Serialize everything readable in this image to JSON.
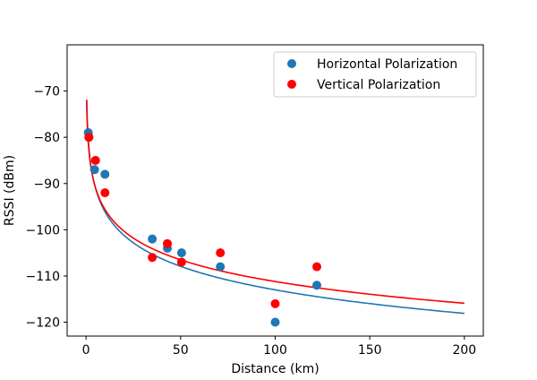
{
  "chart_data": {
    "type": "scatter",
    "xlabel": "Distance (km)",
    "ylabel": "RSSI (dBm)",
    "xlim": [
      -10,
      210
    ],
    "ylim": [
      -123,
      -60
    ],
    "xticks": [
      0,
      50,
      100,
      150,
      200
    ],
    "xtick_labels": [
      "0",
      "50",
      "100",
      "150",
      "200"
    ],
    "yticks": [
      -70,
      -80,
      -90,
      -100,
      -110,
      -120
    ],
    "ytick_labels": [
      "−70",
      "−80",
      "−90",
      "−100",
      "−110",
      "−120"
    ],
    "grid": false,
    "legend_position": "top-right",
    "series": [
      {
        "name": "Horizontal Polarization",
        "kind": "scatter",
        "color": "#1f77b4",
        "x": [
          1.2,
          1.5,
          4.5,
          10,
          35,
          43,
          50.5,
          71,
          100,
          122
        ],
        "y": [
          -79,
          -80,
          -87,
          -88,
          -102,
          -104,
          -105,
          -108,
          -120,
          -112
        ]
      },
      {
        "name": "Vertical Polarization",
        "kind": "scatter",
        "color": "#ff0000",
        "x": [
          1.5,
          5,
          10,
          35,
          43,
          50.5,
          71,
          100,
          122
        ],
        "y": [
          -80,
          -85,
          -92,
          -106,
          -103,
          -107,
          -105,
          -116,
          -108
        ]
      }
    ],
    "fit_lines": [
      {
        "color": "#1f77b4",
        "model": "log10",
        "a": -79.2,
        "b": -16.9,
        "x_start": 0.38,
        "x_end": 200
      },
      {
        "color": "#ff0000",
        "model": "log10",
        "a": -80.0,
        "b": -15.6,
        "x_start": 0.3,
        "x_end": 200
      }
    ]
  }
}
